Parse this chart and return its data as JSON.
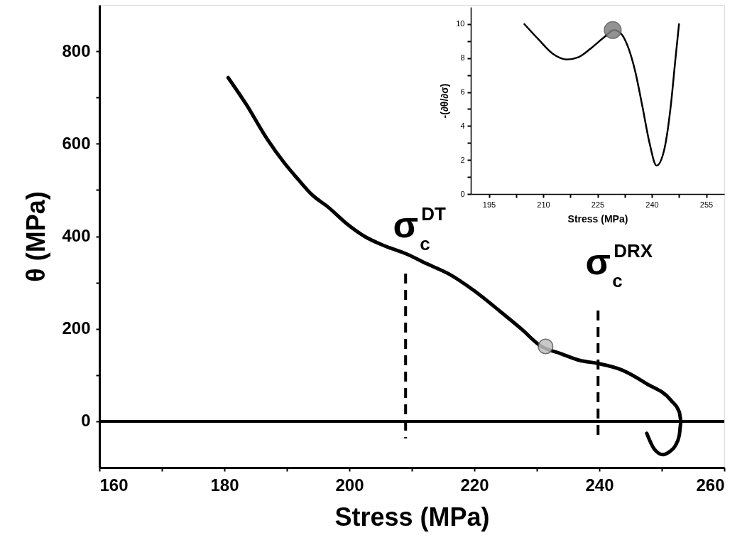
{
  "chart_data": [
    {
      "type": "line",
      "xlabel": "Stress (MPa)",
      "ylabel": "θ (MPa)",
      "xlim": [
        160,
        260
      ],
      "ylim": [
        -100,
        900
      ],
      "xticks": [
        160,
        {
          "value": 170,
          "label": null
        },
        180,
        {
          "value": 190,
          "label": null
        },
        200,
        {
          "value": 210,
          "label": null
        },
        220,
        {
          "value": 230,
          "label": null
        },
        240,
        {
          "value": 250,
          "label": null
        },
        260
      ],
      "yticks": [
        0,
        {
          "value": 100,
          "label": null
        },
        200,
        {
          "value": 300,
          "label": null
        },
        400,
        {
          "value": 500,
          "label": null
        },
        600,
        {
          "value": 700,
          "label": null
        },
        800
      ],
      "series": [
        {
          "type": "line",
          "color": "#000000",
          "x": [
            180.6,
            183.5,
            186.9,
            189.5,
            191.8,
            194,
            196.7,
            199.5,
            202.4,
            205.5,
            209.1,
            212.5,
            216,
            220,
            224.1,
            227.5,
            230.6,
            233.9,
            236.8,
            239.8,
            243.6,
            247.5,
            251.5,
            252.8,
            253.1,
            252.8,
            252.2,
            251.3,
            250.2,
            248.8,
            247.6
          ],
          "values": [
            743,
            685,
            609,
            560,
            523,
            490,
            462,
            428,
            400,
            380,
            362,
            340,
            318,
            282,
            238,
            200,
            163,
            146,
            132,
            125,
            111,
            82,
            45,
            20,
            0,
            -30,
            -52,
            -65,
            -72,
            -60,
            -26
          ]
        },
        {
          "type": "scatter",
          "color": "#c0c0c0",
          "marker": "circle",
          "x": [
            231.4
          ],
          "values": [
            162
          ]
        }
      ],
      "ref_lines": [
        {
          "axis": "y",
          "value": 0,
          "color": "#000000",
          "line_style": "solid"
        },
        {
          "axis": "x",
          "value": 209,
          "label": "σ$^{DT}$$_{c}$",
          "color": "#000000",
          "line_style": "dashed"
        },
        {
          "axis": "x",
          "value": 239.8,
          "label": "σ$^{DRX}$$_{c}$",
          "color": "#000000",
          "line_style": "dashed"
        }
      ]
    },
    {
      "type": "line",
      "xlabel": "Stress (MPa)",
      "ylabel": "-(∂θ/∂σ)",
      "xlim": [
        190,
        260
      ],
      "ylim": [
        0,
        11
      ],
      "xticks": [
        195,
        {
          "value": 202.5,
          "label": null
        },
        210,
        {
          "value": 217.5,
          "label": null
        },
        225,
        {
          "value": 232.5,
          "label": null
        },
        240,
        {
          "value": 247.5,
          "label": null
        },
        255
      ],
      "yticks": [
        0,
        {
          "value": 1,
          "label": null
        },
        2,
        {
          "value": 3,
          "label": null
        },
        4,
        {
          "value": 5,
          "label": null
        },
        6,
        {
          "value": 7,
          "label": null
        },
        8,
        {
          "value": 9,
          "label": null
        },
        10
      ],
      "series": [
        {
          "type": "line",
          "color": "#000000",
          "x": [
            204.8,
            208.7,
            212.6,
            216.5,
            219.8,
            223,
            226.9,
            229.5,
            231.5,
            233.5,
            235.4,
            237.4,
            239.3,
            241.3,
            243.3,
            245.2,
            246.5,
            247.5
          ],
          "values": [
            10,
            9.1,
            8.26,
            7.92,
            8.06,
            8.54,
            9.24,
            9.65,
            9.44,
            8.61,
            7.22,
            5.14,
            3.06,
            1.67,
            2.5,
            5.14,
            7.92,
            10
          ]
        },
        {
          "type": "scatter",
          "color": "#808080",
          "marker": "circle",
          "x": [
            229.2
          ],
          "values": [
            9.65
          ]
        }
      ]
    }
  ]
}
